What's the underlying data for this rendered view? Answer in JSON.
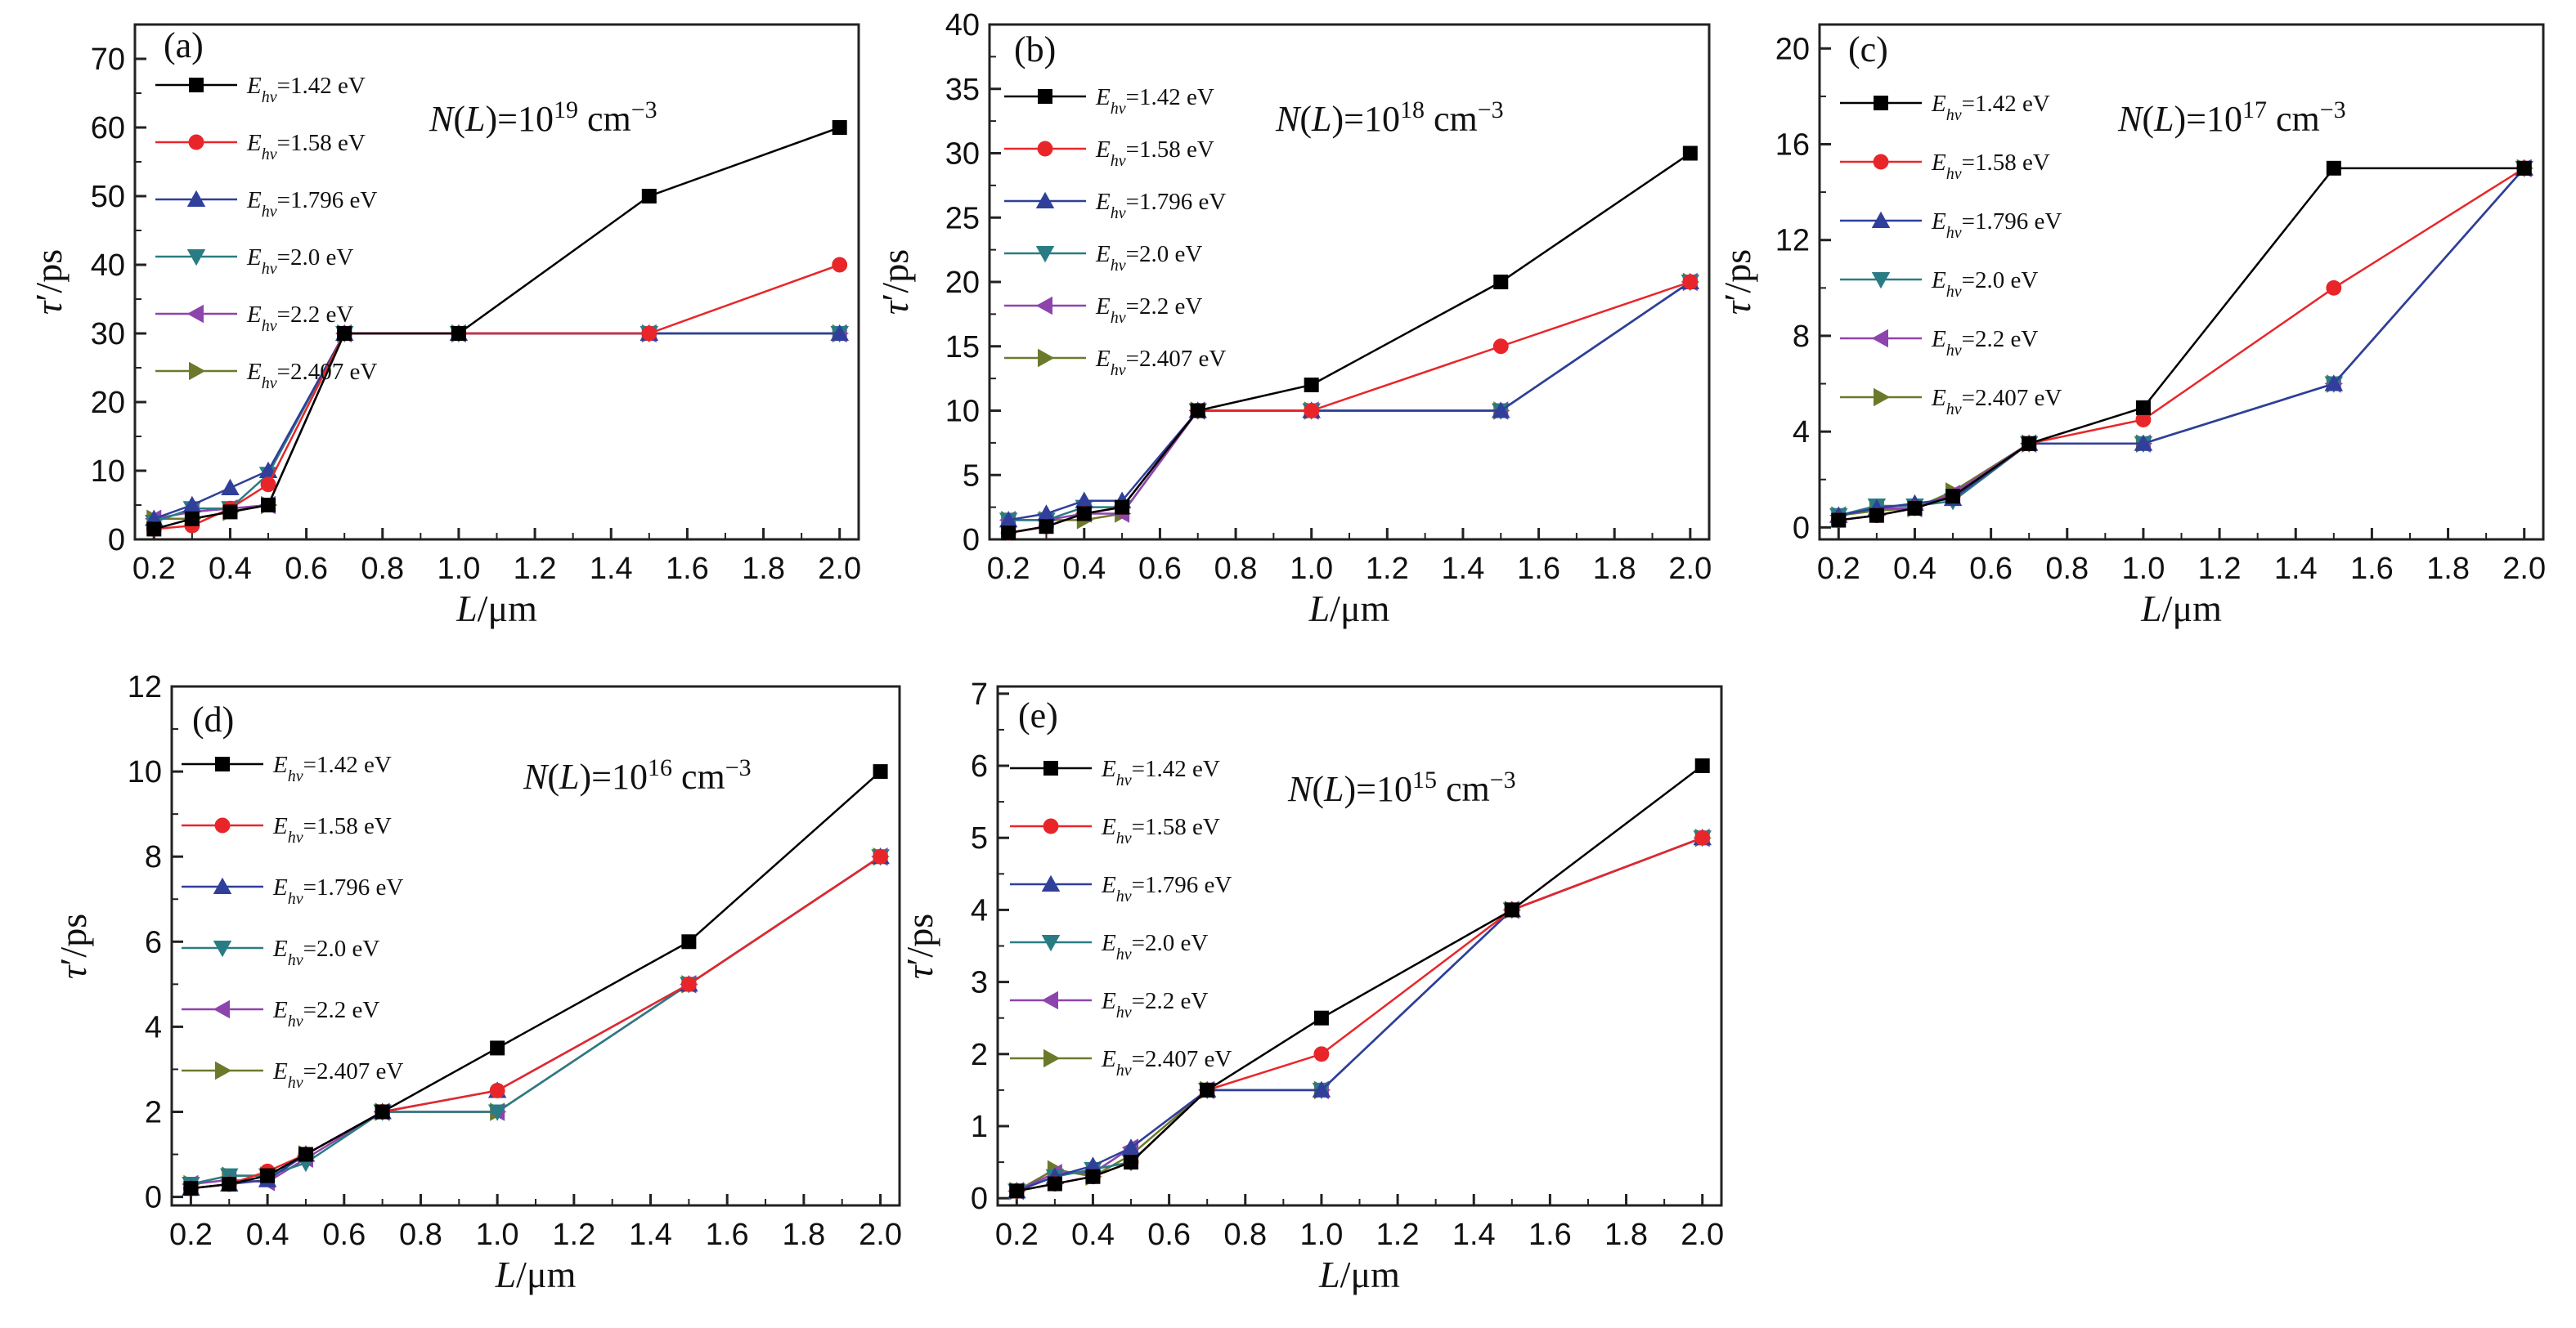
{
  "palette": {
    "s1": "#000000",
    "s2": "#e8262a",
    "s3": "#2f3f9a",
    "s4": "#2a7c84",
    "s5": "#8e44ad",
    "s6": "#6b7a2a"
  },
  "legend_markers": [
    "square",
    "circle",
    "triangle-up",
    "triangle-down",
    "triangle-left",
    "triangle-right"
  ],
  "chart_data": [
    {
      "type": "line",
      "panel_label": "(a)",
      "annotation": {
        "pre": "N(",
        "ital": "L",
        "mid": ")=10",
        "sup": "19",
        "post": " cm",
        "sup2": "−3"
      },
      "xlabel": {
        "ital": "L",
        "rest": "/μm"
      },
      "ylabel": {
        "ital": "τ",
        "rest": "′/ps"
      },
      "xlim": [
        0.15,
        2.05
      ],
      "ylim": [
        0,
        75
      ],
      "xticks": [
        "0.2",
        "0.4",
        "0.6",
        "0.8",
        "1.0",
        "1.2",
        "1.4",
        "1.6",
        "1.8",
        "2.0"
      ],
      "yticks": [
        "0",
        "10",
        "20",
        "30",
        "40",
        "50",
        "60",
        "70"
      ],
      "x": [
        0.2,
        0.3,
        0.4,
        0.5,
        0.7,
        1.0,
        1.5,
        2.0
      ],
      "series": [
        {
          "name": "=1.42 eV",
          "values": [
            1.5,
            3,
            4,
            5,
            30,
            30,
            50,
            60
          ]
        },
        {
          "name": "=1.58 eV",
          "values": [
            1.5,
            2,
            4.5,
            8,
            30,
            30,
            30,
            40
          ]
        },
        {
          "name": "=1.796 eV",
          "values": [
            3,
            5,
            7.5,
            10,
            30,
            30,
            30,
            30
          ]
        },
        {
          "name": "=2.0 eV",
          "values": [
            2.5,
            4.5,
            4.5,
            9.5,
            30,
            30,
            30,
            30
          ]
        },
        {
          "name": "=2.2 eV",
          "values": [
            3,
            4,
            4.5,
            5,
            30,
            30,
            30,
            30
          ]
        },
        {
          "name": "=2.407 eV",
          "values": [
            3,
            3,
            4,
            5,
            30,
            30,
            30,
            30
          ]
        }
      ]
    },
    {
      "type": "line",
      "panel_label": "(b)",
      "annotation": {
        "pre": "N(",
        "ital": "L",
        "mid": ")=10",
        "sup": "18",
        "post": " cm",
        "sup2": "−3"
      },
      "xlabel": {
        "ital": "L",
        "rest": "/μm"
      },
      "ylabel": {
        "ital": "τ",
        "rest": "′/ps"
      },
      "xlim": [
        0.15,
        2.05
      ],
      "ylim": [
        0,
        40
      ],
      "xticks": [
        "0.2",
        "0.4",
        "0.6",
        "0.8",
        "1.0",
        "1.2",
        "1.4",
        "1.6",
        "1.8",
        "2.0"
      ],
      "yticks": [
        "0",
        "5",
        "10",
        "15",
        "20",
        "25",
        "30",
        "35",
        "40"
      ],
      "x": [
        0.2,
        0.3,
        0.4,
        0.5,
        0.7,
        1.0,
        1.5,
        2.0
      ],
      "series": [
        {
          "name": "=1.42 eV",
          "values": [
            0.5,
            1,
            2,
            2.5,
            10,
            12,
            20,
            30
          ]
        },
        {
          "name": "=1.58 eV",
          "values": [
            0.5,
            1,
            2,
            2.5,
            10,
            10,
            15,
            20
          ]
        },
        {
          "name": "=1.796 eV",
          "values": [
            1.5,
            2,
            3,
            3,
            10,
            10,
            10,
            20
          ]
        },
        {
          "name": "=2.0 eV",
          "values": [
            1.5,
            1.5,
            2.5,
            2.5,
            10,
            10,
            10,
            20
          ]
        },
        {
          "name": "=2.2 eV",
          "values": [
            1.5,
            1.5,
            2,
            2,
            10,
            10,
            10,
            20
          ]
        },
        {
          "name": "=2.407 eV",
          "values": [
            1.5,
            1.5,
            1.5,
            2,
            10,
            10,
            10,
            20
          ]
        }
      ]
    },
    {
      "type": "line",
      "panel_label": "(c)",
      "annotation": {
        "pre": "N(",
        "ital": "L",
        "mid": ")=10",
        "sup": "17",
        "post": " cm",
        "sup2": "−3"
      },
      "xlabel": {
        "ital": "L",
        "rest": "/μm"
      },
      "ylabel": {
        "ital": "τ",
        "rest": "′/ps"
      },
      "xlim": [
        0.15,
        2.05
      ],
      "ylim": [
        -0.5,
        21
      ],
      "xticks": [
        "0.2",
        "0.4",
        "0.6",
        "0.8",
        "1.0",
        "1.2",
        "1.4",
        "1.6",
        "1.8",
        "2.0"
      ],
      "yticks": [
        "0",
        "4",
        "8",
        "12",
        "16",
        "20"
      ],
      "x": [
        0.2,
        0.3,
        0.4,
        0.5,
        0.7,
        1.0,
        1.5,
        2.0
      ],
      "series": [
        {
          "name": "=1.42 eV",
          "values": [
            0.3,
            0.5,
            0.8,
            1.3,
            3.5,
            5,
            15,
            15
          ]
        },
        {
          "name": "=1.58 eV",
          "values": [
            0.3,
            0.5,
            0.8,
            1.3,
            3.5,
            4.5,
            10,
            15
          ]
        },
        {
          "name": "=1.796 eV",
          "values": [
            0.5,
            0.8,
            1,
            1.2,
            3.5,
            3.5,
            6,
            15
          ]
        },
        {
          "name": "=2.0 eV",
          "values": [
            0.5,
            0.9,
            0.9,
            1.1,
            3.5,
            3.5,
            6,
            15
          ]
        },
        {
          "name": "=2.2 eV",
          "values": [
            0.5,
            0.8,
            0.8,
            1.4,
            3.5,
            3.5,
            6,
            15
          ]
        },
        {
          "name": "=2.407 eV",
          "values": [
            0.5,
            0.7,
            0.8,
            1.5,
            3.5,
            3.5,
            6,
            15
          ]
        }
      ]
    },
    {
      "type": "line",
      "panel_label": "(d)",
      "annotation": {
        "pre": "N(",
        "ital": "L",
        "mid": ")=10",
        "sup": "16",
        "post": " cm",
        "sup2": "−3"
      },
      "xlabel": {
        "ital": "L",
        "rest": "/μm"
      },
      "ylabel": {
        "ital": "τ",
        "rest": "′/ps"
      },
      "xlim": [
        0.15,
        2.05
      ],
      "ylim": [
        -0.2,
        12
      ],
      "xticks": [
        "0.2",
        "0.4",
        "0.6",
        "0.8",
        "1.0",
        "1.2",
        "1.4",
        "1.6",
        "1.8",
        "2.0"
      ],
      "yticks": [
        "0",
        "2",
        "4",
        "6",
        "8",
        "10",
        "12"
      ],
      "x": [
        0.2,
        0.3,
        0.4,
        0.5,
        0.7,
        1.0,
        1.5,
        2.0
      ],
      "series": [
        {
          "name": "=1.42 eV",
          "values": [
            0.2,
            0.3,
            0.5,
            1,
            2,
            3.5,
            6,
            10
          ]
        },
        {
          "name": "=1.58 eV",
          "values": [
            0.2,
            0.3,
            0.6,
            1,
            2,
            2.5,
            5,
            8
          ]
        },
        {
          "name": "=1.796 eV",
          "values": [
            0.2,
            0.3,
            0.4,
            1,
            2,
            2.5,
            5,
            8
          ]
        },
        {
          "name": "=2.0 eV",
          "values": [
            0.3,
            0.5,
            0.5,
            0.8,
            2,
            2,
            5,
            8
          ]
        },
        {
          "name": "=2.2 eV",
          "values": [
            0.3,
            0.4,
            0.35,
            0.9,
            2,
            2,
            5,
            8
          ]
        },
        {
          "name": "=2.407 eV",
          "values": [
            0.3,
            0.5,
            0.5,
            1,
            2,
            2,
            5,
            8
          ]
        }
      ]
    },
    {
      "type": "line",
      "panel_label": "(e)",
      "annotation": {
        "pre": "N(",
        "ital": "L",
        "mid": ")=10",
        "sup": "15",
        "post": " cm",
        "sup2": "−3"
      },
      "xlabel": {
        "ital": "L",
        "rest": "/μm"
      },
      "ylabel": {
        "ital": "τ",
        "rest": "′/ps"
      },
      "xlim": [
        0.15,
        2.05
      ],
      "ylim": [
        -0.1,
        7.1
      ],
      "xticks": [
        "0.2",
        "0.4",
        "0.6",
        "0.8",
        "1.0",
        "1.2",
        "1.4",
        "1.6",
        "1.8",
        "2.0"
      ],
      "yticks": [
        "0",
        "1",
        "2",
        "3",
        "4",
        "5",
        "6",
        "7"
      ],
      "x": [
        0.2,
        0.3,
        0.4,
        0.5,
        0.7,
        1.0,
        1.5,
        2.0
      ],
      "series": [
        {
          "name": "=1.42 eV",
          "values": [
            0.1,
            0.2,
            0.3,
            0.5,
            1.5,
            2.5,
            4,
            6
          ]
        },
        {
          "name": "=1.58 eV",
          "values": [
            0.1,
            0.2,
            0.3,
            0.5,
            1.5,
            2,
            4,
            5
          ]
        },
        {
          "name": "=1.796 eV",
          "values": [
            0.1,
            0.3,
            0.45,
            0.7,
            1.5,
            1.5,
            4,
            5
          ]
        },
        {
          "name": "=2.0 eV",
          "values": [
            0.1,
            0.3,
            0.4,
            0.5,
            1.5,
            1.5,
            4,
            5
          ]
        },
        {
          "name": "=2.2 eV",
          "values": [
            0.1,
            0.35,
            0.35,
            0.7,
            1.5,
            1.5,
            4,
            5
          ]
        },
        {
          "name": "=2.407 eV",
          "values": [
            0.1,
            0.4,
            0.3,
            0.6,
            1.5,
            1.5,
            4,
            5
          ]
        }
      ]
    }
  ],
  "legend_prefix": "E",
  "legend_sub": "hν"
}
